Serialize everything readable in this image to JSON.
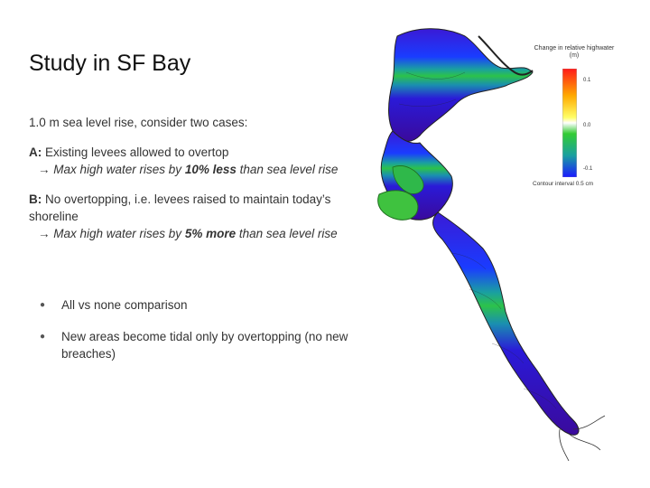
{
  "slide": {
    "title": "Study in SF Bay",
    "intro": "1.0 m sea level rise, consider two cases:",
    "case_a": {
      "label": "A:",
      "text": " Existing levees allowed to overtop",
      "result_prefix": "→ Max high water rises by ",
      "result_emphasis": "10% less",
      "result_suffix": " than sea level rise"
    },
    "case_b": {
      "label": "B:",
      "text": " No overtopping, i.e. levees raised to maintain today’s shoreline",
      "result_prefix": "→ Max high water rises by ",
      "result_emphasis": "5% more",
      "result_suffix": " than sea level rise"
    },
    "bullets": [
      "All vs none comparison",
      "New areas become tidal only by overtopping (no new breaches)"
    ]
  },
  "map": {
    "legend_title": "Change in relative highwater (m)",
    "ticks": [
      "0.1",
      "0.0",
      "-0.1"
    ],
    "contour_note": "Contour interval 0.5 cm",
    "colors": {
      "high": "#ff1a1a",
      "mid": "#ffff66",
      "zero": "#ffffff",
      "low_green": "#33cc33",
      "low": "#1a1aff",
      "deep": "#4a0099"
    }
  }
}
